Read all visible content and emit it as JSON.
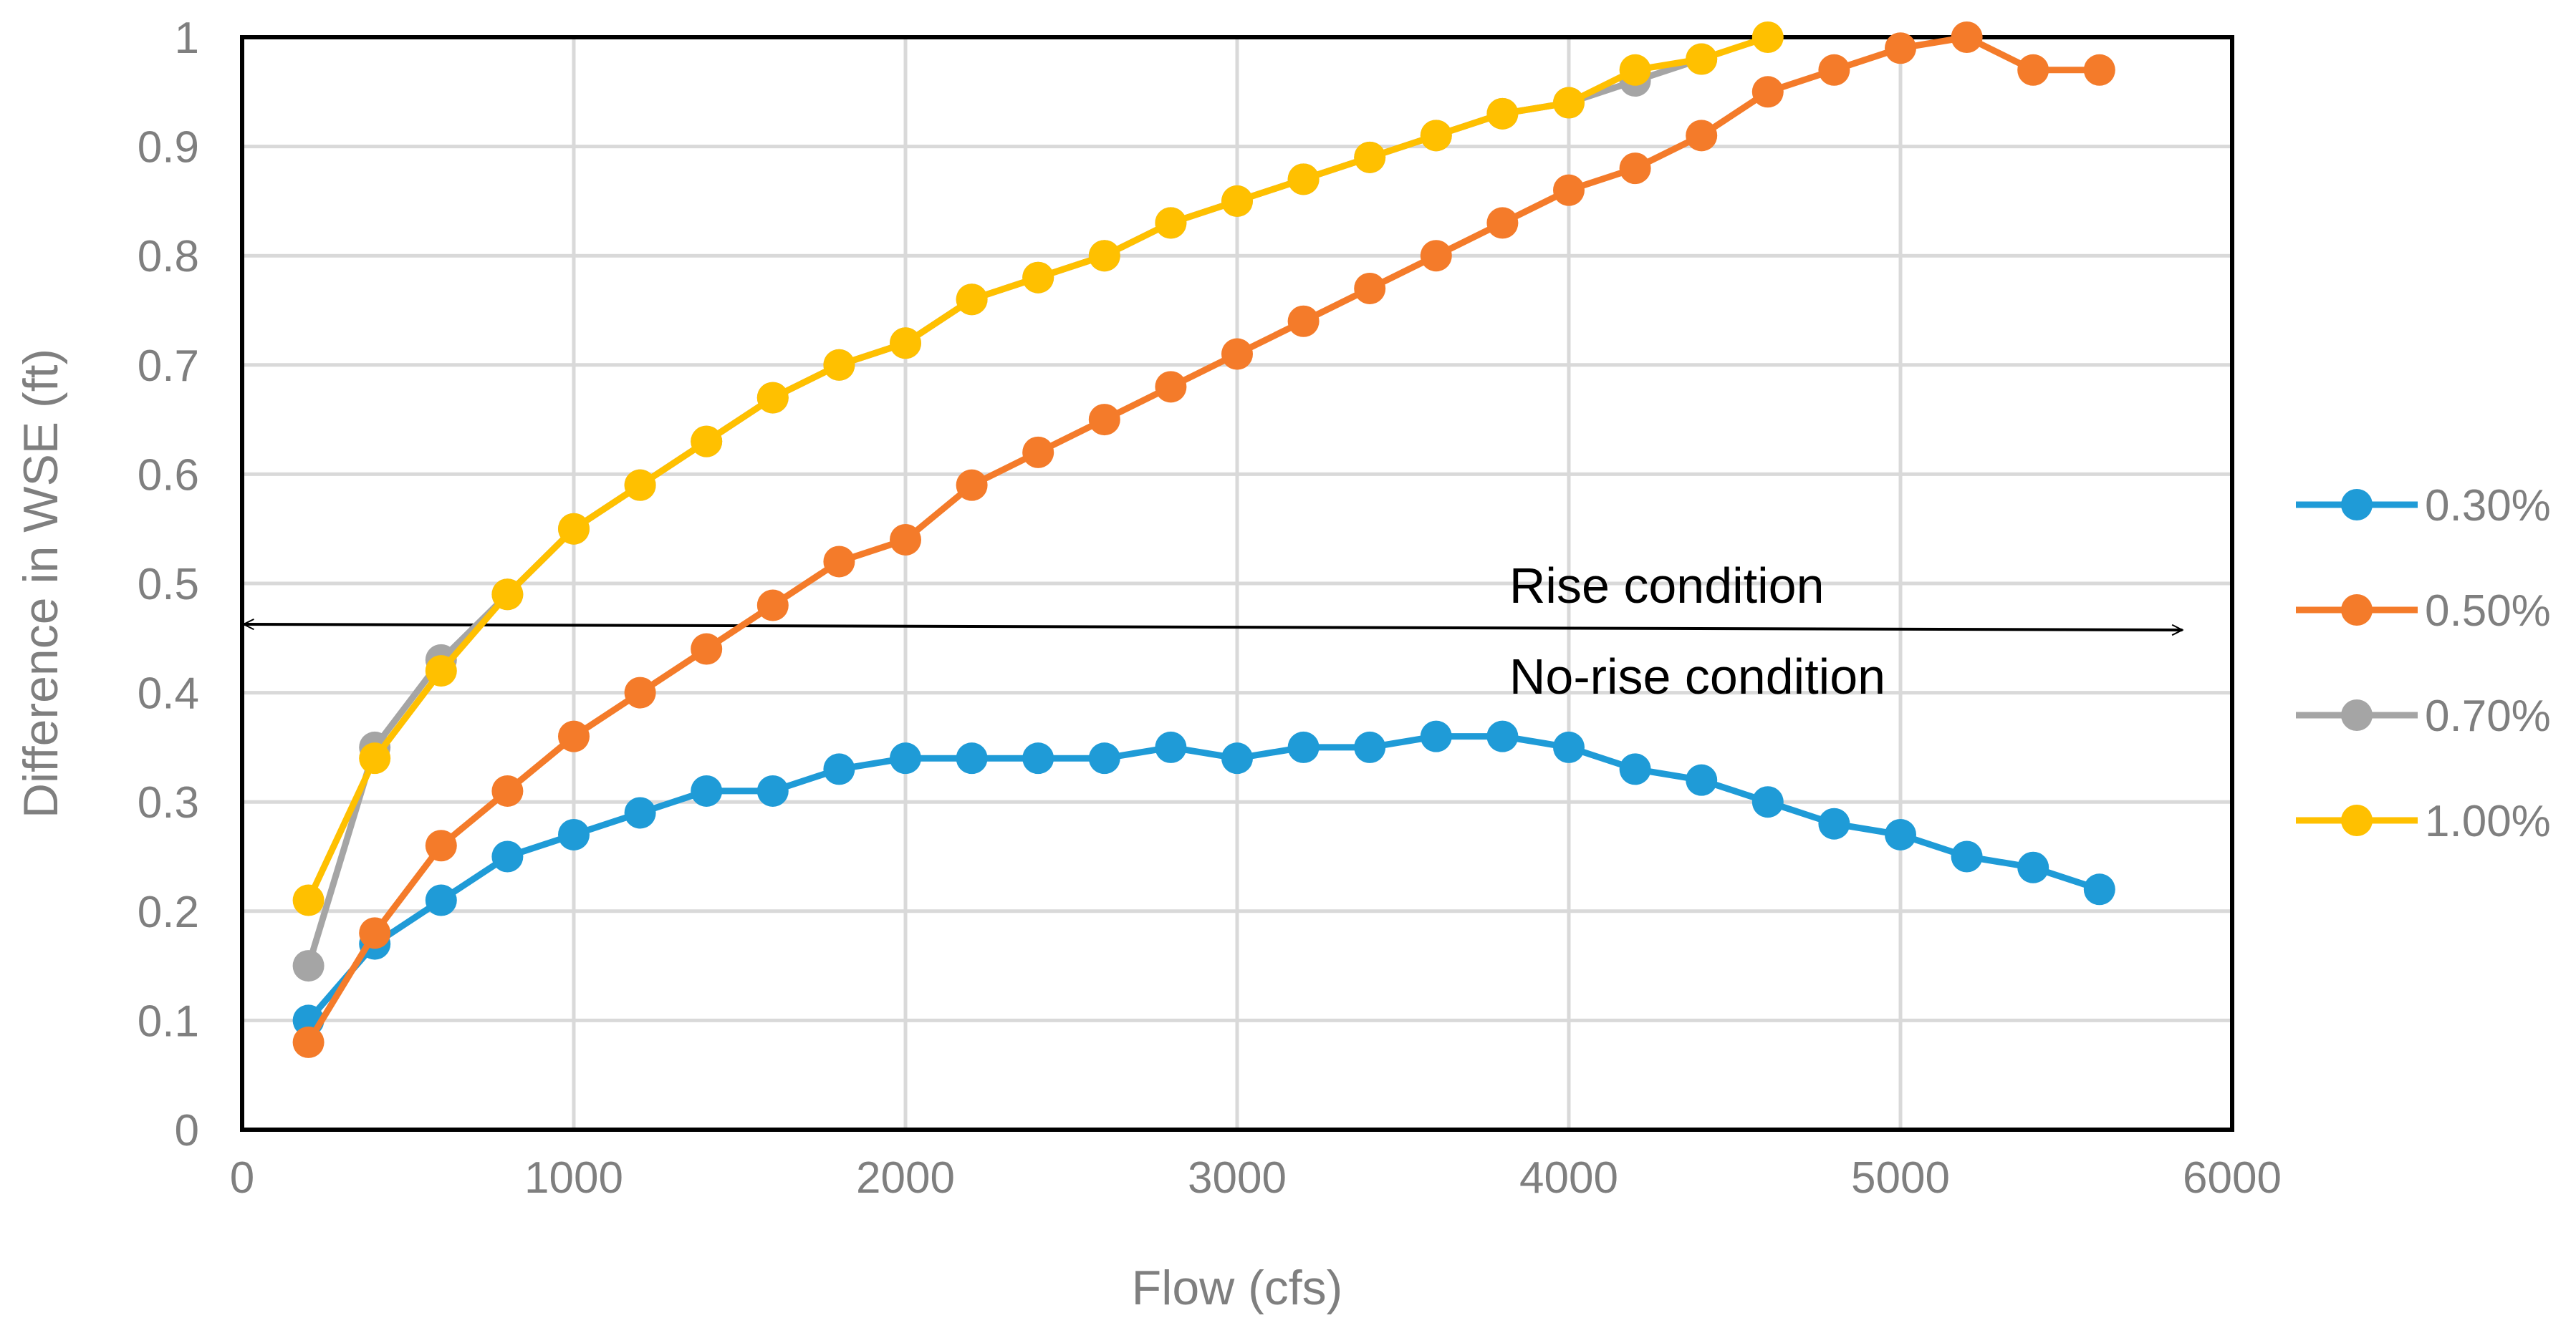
{
  "chart_data": {
    "type": "line",
    "title": "",
    "xlabel": "Flow (cfs)",
    "ylabel": "Difference in WSE (ft)",
    "xlim": [
      0,
      6000
    ],
    "ylim": [
      0,
      1
    ],
    "x_ticks": [
      0,
      1000,
      2000,
      3000,
      4000,
      5000,
      6000
    ],
    "x_tick_labels": [
      "0",
      "1000",
      "2000",
      "3000",
      "4000",
      "5000",
      "6000"
    ],
    "y_ticks": [
      0,
      0.1,
      0.2,
      0.3,
      0.4,
      0.5,
      0.6,
      0.7,
      0.8,
      0.9,
      1
    ],
    "y_tick_labels": [
      "0",
      "0.1",
      "0.2",
      "0.3",
      "0.4",
      "0.5",
      "0.6",
      "0.7",
      "0.8",
      "0.9",
      "1"
    ],
    "grid": true,
    "legend_position": "right",
    "series": [
      {
        "name": "0.30%",
        "color": "#1f9bd7",
        "x": [
          200,
          400,
          600,
          800,
          1000,
          1200,
          1400,
          1600,
          1800,
          2000,
          2200,
          2400,
          2600,
          2800,
          3000,
          3200,
          3400,
          3600,
          3800,
          4000,
          4200,
          4400,
          4600,
          4800,
          5000,
          5200,
          5400,
          5600
        ],
        "values": [
          0.1,
          0.17,
          0.21,
          0.25,
          0.27,
          0.29,
          0.31,
          0.31,
          0.33,
          0.34,
          0.34,
          0.34,
          0.34,
          0.35,
          0.34,
          0.35,
          0.35,
          0.36,
          0.36,
          0.35,
          0.33,
          0.32,
          0.3,
          0.28,
          0.27,
          0.25,
          0.24,
          0.22
        ]
      },
      {
        "name": "0.50%",
        "color": "#f47b2a",
        "x": [
          200,
          400,
          600,
          800,
          1000,
          1200,
          1400,
          1600,
          1800,
          2000,
          2200,
          2400,
          2600,
          2800,
          3000,
          3200,
          3400,
          3600,
          3800,
          4000,
          4200,
          4400,
          4600,
          4800,
          5000,
          5200,
          5400,
          5600
        ],
        "values": [
          0.08,
          0.18,
          0.26,
          0.31,
          0.36,
          0.4,
          0.44,
          0.48,
          0.52,
          0.54,
          0.59,
          0.62,
          0.65,
          0.68,
          0.71,
          0.74,
          0.77,
          0.8,
          0.83,
          0.86,
          0.88,
          0.91,
          0.95,
          0.97,
          0.99,
          1.0,
          0.97,
          0.97
        ]
      },
      {
        "name": "0.70%",
        "color": "#a5a5a5",
        "x": [
          200,
          400,
          600,
          800,
          1000,
          1200,
          1400,
          1600,
          1800,
          2000,
          2200,
          2400,
          2600,
          2800,
          3000,
          3200,
          3400,
          3600,
          3800,
          4000,
          4200,
          4400
        ],
        "values": [
          0.15,
          0.35,
          0.43,
          0.49,
          0.55,
          0.59,
          0.63,
          0.67,
          0.7,
          0.72,
          0.76,
          0.78,
          0.8,
          0.83,
          0.85,
          0.87,
          0.89,
          0.91,
          0.93,
          0.94,
          0.96,
          0.98
        ]
      },
      {
        "name": "1.00%",
        "color": "#ffc000",
        "x": [
          200,
          400,
          600,
          800,
          1000,
          1200,
          1400,
          1600,
          1800,
          2000,
          2200,
          2400,
          2600,
          2800,
          3000,
          3200,
          3400,
          3600,
          3800,
          4000,
          4200,
          4400,
          4600
        ],
        "values": [
          0.21,
          0.34,
          0.42,
          0.49,
          0.55,
          0.59,
          0.63,
          0.67,
          0.7,
          0.72,
          0.76,
          0.78,
          0.8,
          0.83,
          0.85,
          0.87,
          0.89,
          0.91,
          0.93,
          0.94,
          0.97,
          0.98,
          1.0
        ]
      }
    ],
    "annotations": {
      "threshold_value": 0.46,
      "arrow_x_range": [
        0,
        5850
      ],
      "above_label": "Rise condition",
      "below_label": "No-rise condition",
      "label_x": 3950
    }
  }
}
